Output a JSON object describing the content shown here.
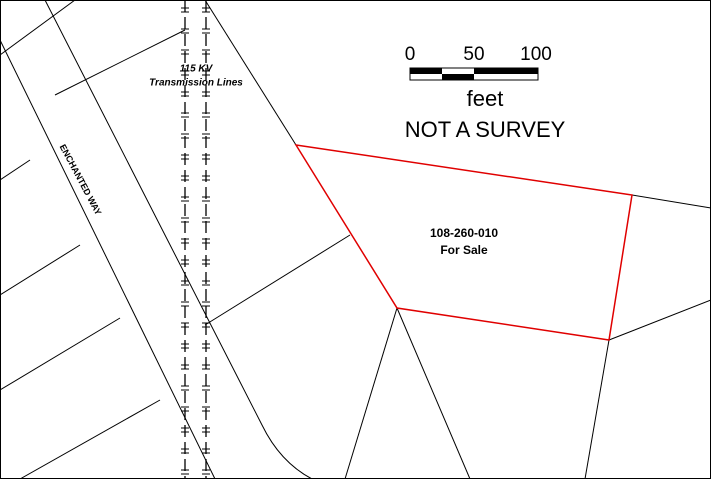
{
  "map": {
    "transmission_label": {
      "line1": "115 KV",
      "line2": "Transmission Lines"
    },
    "road_label": "ENCHANTED WAY",
    "scale": {
      "ticks": [
        "0",
        "50",
        "100"
      ],
      "unit": "feet"
    },
    "disclaimer": "NOT A SURVEY",
    "parcel": {
      "id": "108-260-010",
      "status": "For Sale"
    }
  }
}
